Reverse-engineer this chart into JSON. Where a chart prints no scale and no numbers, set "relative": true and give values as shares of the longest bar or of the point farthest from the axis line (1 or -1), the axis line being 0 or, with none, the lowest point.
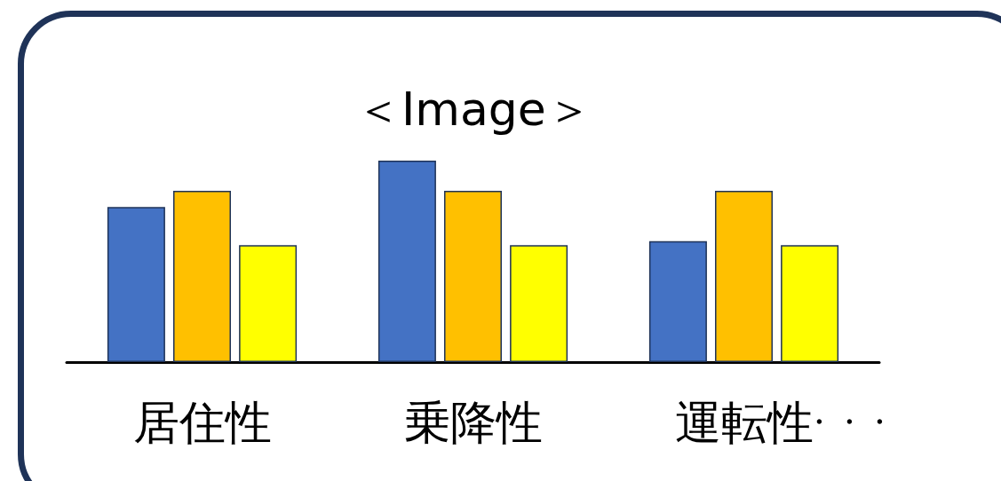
{
  "chart_data": {
    "type": "bar",
    "title": "＜Image＞",
    "relative": true,
    "categories": [
      "居住性",
      "乗降性",
      "運転性"
    ],
    "series": [
      {
        "color": "#4472c4",
        "values": [
          0.77,
          1,
          0.6
        ]
      },
      {
        "color": "#ffc000",
        "values": [
          0.85,
          0.85,
          0.85
        ]
      },
      {
        "color": "#ffff00",
        "values": [
          0.58,
          0.58,
          0.58
        ]
      }
    ],
    "annotations": [
      "・・・"
    ]
  }
}
